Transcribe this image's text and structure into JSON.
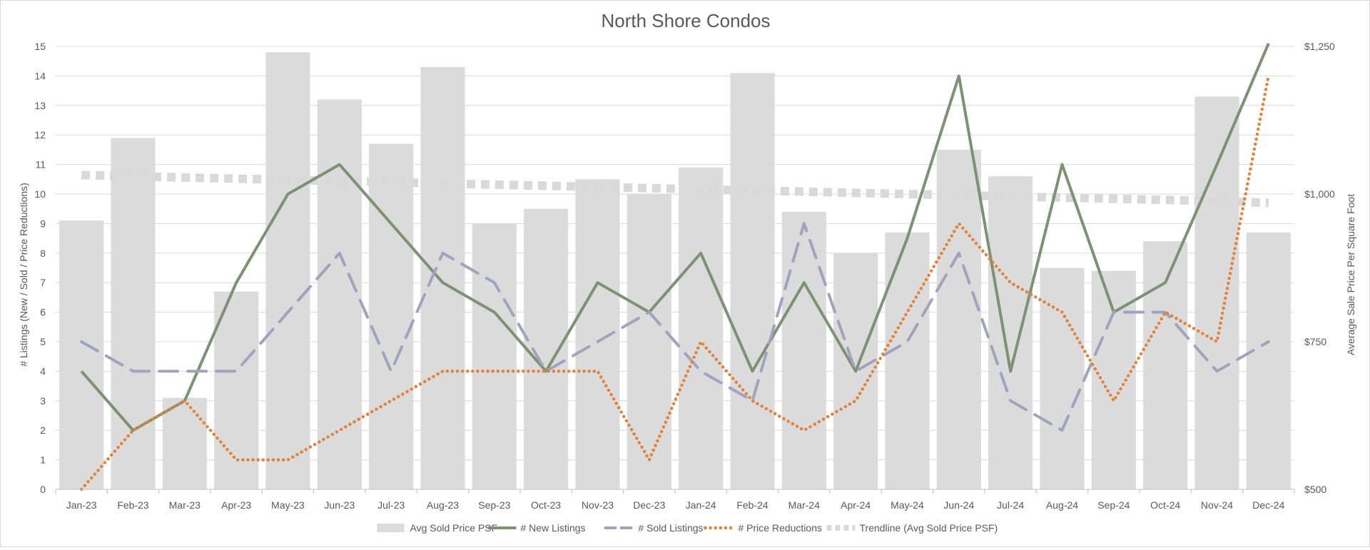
{
  "chart_data": {
    "type": "bar",
    "title": "North Shore Condos",
    "ylabel": "# Listings (New / Sold / Price Reductions)",
    "y2label": "Average Sale Price Per Square Foot",
    "ylim": [
      0,
      15
    ],
    "y2lim": [
      500,
      1250
    ],
    "yticks": [
      "0",
      "1",
      "2",
      "3",
      "4",
      "5",
      "6",
      "7",
      "8",
      "9",
      "10",
      "11",
      "12",
      "13",
      "14",
      "15"
    ],
    "y2ticks": [
      "$500",
      "$750",
      "$1,000",
      "$1,250"
    ],
    "grid": true,
    "legend_position": "bottom",
    "categories": [
      "Jan-23",
      "Feb-23",
      "Mar-23",
      "Apr-23",
      "May-23",
      "Jun-23",
      "Jul-23",
      "Aug-23",
      "Sep-23",
      "Oct-23",
      "Nov-23",
      "Dec-23",
      "Jan-24",
      "Feb-24",
      "Mar-24",
      "Apr-24",
      "May-24",
      "Jun-24",
      "Jul-24",
      "Aug-24",
      "Sep-24",
      "Oct-24",
      "Nov-24",
      "Dec-24"
    ],
    "series": [
      {
        "name": "Avg Sold Price PSF",
        "type": "bar",
        "axis": "right",
        "color": "#dcdbdc",
        "values": [
          955,
          1095,
          655,
          835,
          1240,
          1160,
          1085,
          1215,
          950,
          975,
          1025,
          1000,
          1045,
          1205,
          970,
          900,
          935,
          1075,
          1030,
          875,
          870,
          920,
          1165,
          935
        ]
      },
      {
        "name": "# New Listings",
        "type": "line",
        "axis": "left",
        "color": "#7a9373",
        "style": "solid",
        "values": [
          4,
          2,
          3,
          7,
          10,
          11,
          9,
          7,
          6,
          4,
          7,
          6,
          8,
          4,
          7,
          4,
          8.5,
          14,
          4,
          11,
          6,
          7,
          11,
          15.1
        ]
      },
      {
        "name": "# Sold Listings",
        "type": "line",
        "axis": "left",
        "color": "#9fa3bd",
        "style": "dashed",
        "values": [
          5,
          4,
          4,
          4,
          6,
          8,
          4,
          8,
          7,
          4,
          5,
          6,
          4,
          3,
          9,
          4,
          5,
          8,
          3,
          2,
          6,
          6,
          4,
          5
        ]
      },
      {
        "name": "# Price Reductions",
        "type": "line",
        "axis": "left",
        "color": "#e0843c",
        "style": "dotted",
        "values": [
          0,
          2,
          3,
          1,
          1,
          2,
          3,
          4,
          4,
          4,
          4,
          1,
          5,
          3,
          2,
          3,
          6,
          9,
          7,
          6,
          3,
          6,
          5,
          14
        ]
      },
      {
        "name": "Trendline (Avg Sold Price PSF)",
        "type": "trendline",
        "axis": "right",
        "color": "#d9d9d9",
        "style": "dotted",
        "values": [
          1032,
          1030,
          1028,
          1026,
          1024,
          1022,
          1020,
          1018,
          1016,
          1014,
          1012,
          1010,
          1008,
          1006,
          1004,
          1002,
          1000,
          998,
          996,
          994,
          992,
          990,
          988,
          985
        ]
      }
    ]
  }
}
